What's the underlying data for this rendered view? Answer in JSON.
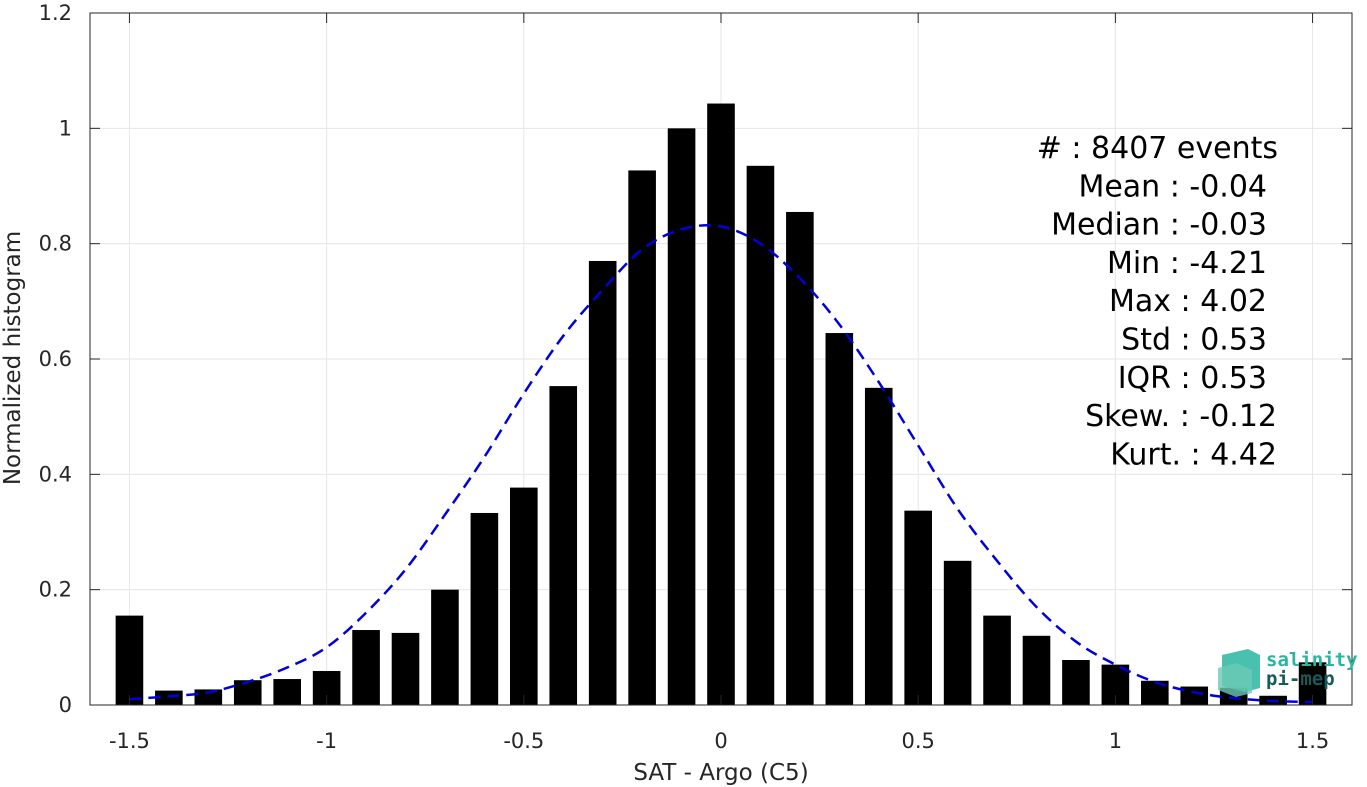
{
  "chart_data": {
    "type": "bar",
    "xlabel": "SAT - Argo (C5)",
    "ylabel": "Normalized histogram",
    "xlim": [
      -1.6,
      1.6
    ],
    "ylim": [
      0,
      1.2
    ],
    "xticks": [
      -1.5,
      -1,
      -0.5,
      0,
      0.5,
      1,
      1.5
    ],
    "xtick_labels": [
      "-1.5",
      "-1",
      "-0.5",
      "0",
      "0.5",
      "1",
      "1.5"
    ],
    "yticks": [
      0,
      0.2,
      0.4,
      0.6,
      0.8,
      1,
      1.2
    ],
    "ytick_labels": [
      "0",
      "0.2",
      "0.4",
      "0.6",
      "0.8",
      "1",
      "1.2"
    ],
    "grid": true,
    "bar_width": 0.07,
    "bar_color": "#000000",
    "x": [
      -1.5,
      -1.4,
      -1.3,
      -1.2,
      -1.1,
      -1.0,
      -0.9,
      -0.8,
      -0.7,
      -0.6,
      -0.5,
      -0.4,
      -0.3,
      -0.2,
      -0.1,
      0.0,
      0.1,
      0.2,
      0.3,
      0.4,
      0.5,
      0.6,
      0.7,
      0.8,
      0.9,
      1.0,
      1.1,
      1.2,
      1.3,
      1.4,
      1.5
    ],
    "values": [
      0.155,
      0.025,
      0.027,
      0.043,
      0.045,
      0.059,
      0.13,
      0.125,
      0.2,
      0.333,
      0.377,
      0.553,
      0.77,
      0.927,
      1.0,
      1.043,
      0.935,
      0.855,
      0.645,
      0.55,
      0.337,
      0.25,
      0.155,
      0.12,
      0.078,
      0.07,
      0.042,
      0.032,
      0.03,
      0.016,
      0.074
    ],
    "fit_curve": {
      "style": "dashed",
      "color": "#0000dd",
      "x": [
        -1.5,
        -1.4,
        -1.3,
        -1.2,
        -1.1,
        -1.0,
        -0.9,
        -0.8,
        -0.7,
        -0.6,
        -0.5,
        -0.4,
        -0.3,
        -0.2,
        -0.1,
        0.0,
        0.1,
        0.2,
        0.3,
        0.4,
        0.5,
        0.6,
        0.7,
        0.8,
        0.9,
        1.0,
        1.1,
        1.2,
        1.3,
        1.4,
        1.5
      ],
      "y": [
        0.01,
        0.015,
        0.022,
        0.04,
        0.065,
        0.1,
        0.16,
        0.235,
        0.33,
        0.43,
        0.54,
        0.64,
        0.72,
        0.79,
        0.825,
        0.83,
        0.8,
        0.74,
        0.66,
        0.56,
        0.45,
        0.34,
        0.25,
        0.17,
        0.11,
        0.07,
        0.04,
        0.022,
        0.012,
        0.007,
        0.005
      ]
    },
    "annotations": [
      "#  : 8407 events",
      "Mean : -0.04",
      "Median : -0.03",
      "Min : -4.21",
      "Max : 4.02",
      "Std : 0.53",
      "IQR : 0.53",
      "Skew. : -0.12",
      "Kurt. : 4.42"
    ]
  },
  "logo": {
    "line1": "salinity",
    "line2": "pi-mep",
    "color_light": "#2ab5a0",
    "color_dark": "#1a5a5a"
  }
}
